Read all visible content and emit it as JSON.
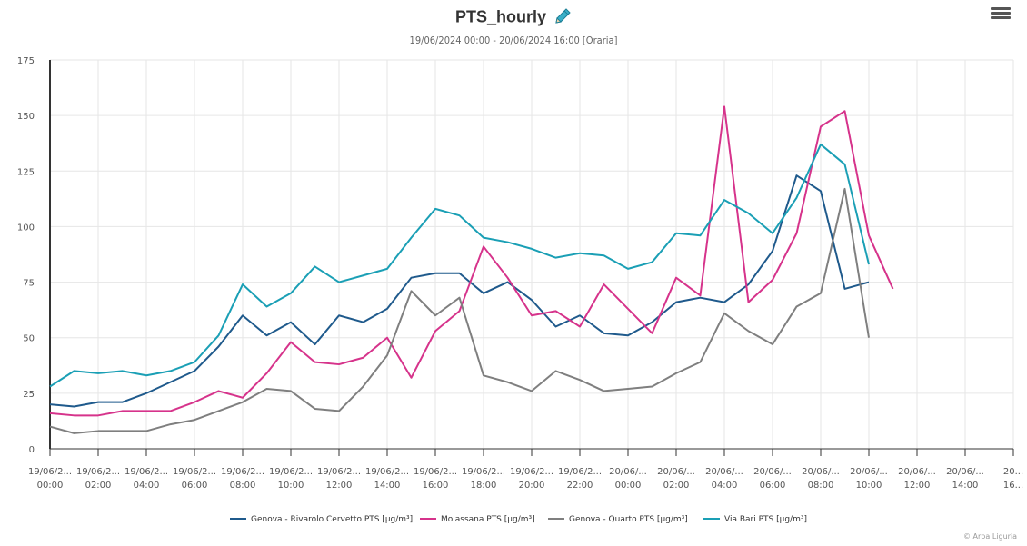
{
  "chart_data": {
    "type": "line",
    "title": "PTS_hourly",
    "subtitle": "19/06/2024 00:00 - 20/06/2024 16:00 [Oraria]",
    "ylim": [
      0,
      175
    ],
    "yticks": [
      0,
      25,
      50,
      75,
      100,
      125,
      150,
      175
    ],
    "xticks": [
      [
        "19/06/2...",
        "00:00"
      ],
      [
        "19/06/2...",
        "02:00"
      ],
      [
        "19/06/2...",
        "04:00"
      ],
      [
        "19/06/2...",
        "06:00"
      ],
      [
        "19/06/2...",
        "08:00"
      ],
      [
        "19/06/2...",
        "10:00"
      ],
      [
        "19/06/2...",
        "12:00"
      ],
      [
        "19/06/2...",
        "14:00"
      ],
      [
        "19/06/2...",
        "16:00"
      ],
      [
        "19/06/2...",
        "18:00"
      ],
      [
        "19/06/2...",
        "20:00"
      ],
      [
        "19/06/2...",
        "22:00"
      ],
      [
        "20/06/...",
        "00:00"
      ],
      [
        "20/06/...",
        "02:00"
      ],
      [
        "20/06/...",
        "04:00"
      ],
      [
        "20/06/...",
        "06:00"
      ],
      [
        "20/06/...",
        "08:00"
      ],
      [
        "20/06/...",
        "10:00"
      ],
      [
        "20/06/...",
        "12:00"
      ],
      [
        "20/06/...",
        "14:00"
      ],
      [
        "20...",
        "16..."
      ]
    ],
    "x_hours_total": 40,
    "series": [
      {
        "name": "Genova - Rivarolo Cervetto PTS [µg/m³]",
        "color": "#1f5a8c",
        "values": [
          20,
          19,
          21,
          21,
          25,
          30,
          35,
          46,
          60,
          51,
          57,
          47,
          60,
          57,
          63,
          77,
          79,
          79,
          70,
          75,
          67,
          55,
          60,
          52,
          51,
          57,
          66,
          68,
          66,
          74,
          89,
          123,
          116,
          72,
          75
        ]
      },
      {
        "name": "Molassana PTS [µg/m³]",
        "color": "#d6338b",
        "values": [
          16,
          15,
          15,
          17,
          17,
          17,
          21,
          26,
          23,
          34,
          48,
          39,
          38,
          41,
          50,
          32,
          53,
          62,
          91,
          77,
          60,
          62,
          55,
          74,
          63,
          52,
          77,
          69,
          154,
          66,
          76,
          97,
          145,
          152,
          96,
          72
        ]
      },
      {
        "name": "Genova - Quarto PTS [µg/m³]",
        "color": "#7f7f7f",
        "values": [
          10,
          7,
          8,
          8,
          8,
          11,
          13,
          17,
          21,
          27,
          26,
          18,
          17,
          28,
          42,
          71,
          60,
          68,
          33,
          30,
          26,
          35,
          31,
          26,
          27,
          28,
          34,
          39,
          61,
          53,
          47,
          64,
          70,
          117,
          50
        ]
      },
      {
        "name": "Via Bari PTS [µg/m³]",
        "color": "#1a9fb5",
        "values": [
          28,
          35,
          34,
          35,
          33,
          35,
          39,
          51,
          74,
          64,
          70,
          82,
          75,
          78,
          81,
          95,
          108,
          105,
          95,
          93,
          90,
          86,
          88,
          87,
          81,
          84,
          97,
          96,
          112,
          106,
          97,
          113,
          137,
          128,
          83
        ]
      }
    ]
  },
  "credit": "© Arpa Liguria",
  "icons": {
    "edit": "pencil-icon",
    "menu": "hamburger-menu-icon"
  }
}
